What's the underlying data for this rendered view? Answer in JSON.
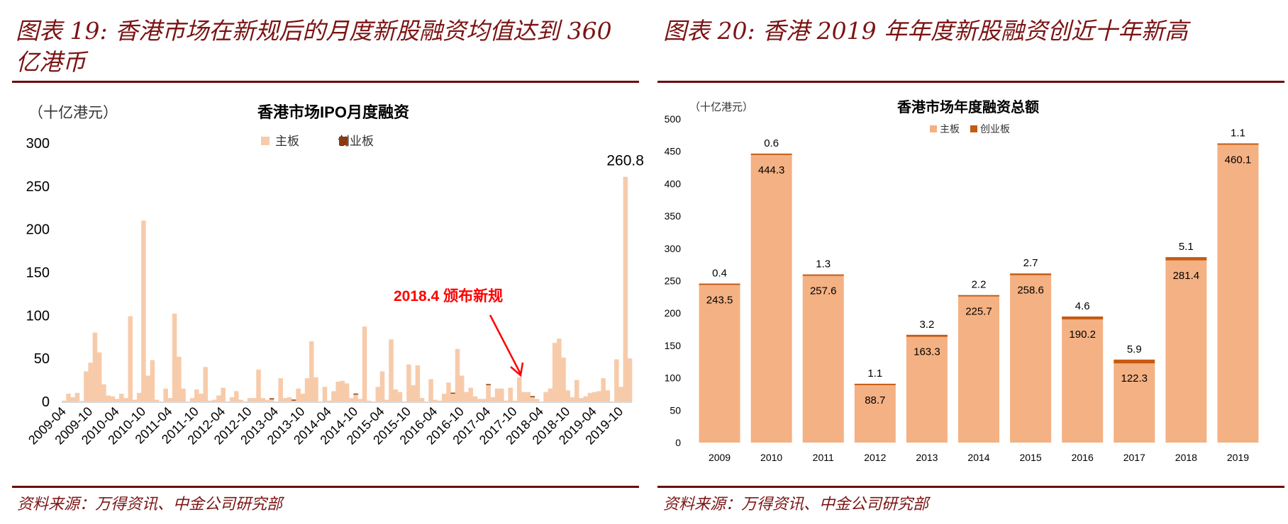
{
  "left_panel": {
    "title_line1": "图表 19:  香港市场在新规后的月度新股融资均值达到 360",
    "title_line2": "亿港币",
    "source": "资料来源：万得资讯、中金公司研究部",
    "annotation": "2018.4  颁布新规"
  },
  "right_panel": {
    "title": "图表 20:  香港 2019 年年度新股融资创近十年新高",
    "source": "资料来源：万得资讯、中金公司研究部"
  },
  "colors": {
    "title": "#7B1414",
    "left_main": "#F7CBAA",
    "left_gem": "#8B3A0F",
    "right_main": "#F4B183",
    "right_gem": "#C55A11",
    "annotation": "#FF0000"
  },
  "chart_data": [
    {
      "type": "bar",
      "stacked": true,
      "title": "香港市场IPO月度融资",
      "unit": "（十亿港元）",
      "ylim": [
        0,
        300
      ],
      "yticks": [
        "0",
        "50",
        "100",
        "150",
        "200",
        "250",
        "300"
      ],
      "x_start": "2009-04",
      "x_end": "2019-12",
      "xtick_labels": [
        "2009-04",
        "2009-10",
        "2010-04",
        "2010-10",
        "2011-04",
        "2011-10",
        "2012-04",
        "2012-10",
        "2013-04",
        "2013-10",
        "2014-04",
        "2014-10",
        "2015-04",
        "2015-10",
        "2016-04",
        "2016-10",
        "2017-04",
        "2017-10",
        "2018-04",
        "2018-10",
        "2019-04",
        "2019-10"
      ],
      "legend": [
        "主板",
        "创业板"
      ],
      "legend_position": "top",
      "max_label": "260.8",
      "series": [
        {
          "name": "主板",
          "values": [
            1,
            9,
            5,
            10,
            0.5,
            35,
            45,
            80,
            57,
            20,
            7,
            6,
            3,
            9,
            4,
            99,
            2,
            10,
            210,
            30,
            48,
            2,
            0,
            15,
            4,
            102,
            52,
            15,
            0,
            4,
            14,
            9,
            40,
            1,
            2,
            7,
            16,
            0,
            5,
            12,
            2,
            0,
            4,
            4,
            37,
            4,
            2,
            2.5,
            0,
            27,
            4,
            5,
            1,
            15,
            9,
            27,
            70,
            28,
            0,
            17,
            1,
            12,
            23,
            24,
            21,
            4,
            8,
            3,
            87,
            1,
            0,
            17,
            35,
            2,
            72,
            14,
            11,
            0,
            43,
            19,
            42,
            4,
            0,
            26,
            2,
            1,
            9,
            22,
            9,
            61,
            30,
            11,
            16,
            6,
            3,
            3,
            19,
            5,
            15,
            15,
            1,
            16,
            1,
            28,
            11,
            11,
            5,
            3,
            0,
            11,
            15,
            68,
            73,
            51,
            13,
            5,
            25,
            4,
            6,
            10,
            11,
            12,
            27,
            13,
            0,
            49,
            17,
            260.8,
            50
          ]
        },
        {
          "name": "创业板",
          "values": [
            0,
            0,
            0,
            0,
            0,
            0,
            0,
            0,
            0,
            0,
            0,
            0,
            0,
            0,
            0,
            0,
            0,
            0,
            0,
            0,
            0,
            0,
            0,
            0,
            0,
            0,
            0,
            0,
            0,
            0,
            0,
            0,
            0,
            0,
            0,
            0,
            0,
            0,
            0,
            0,
            0,
            0,
            0,
            0,
            0,
            0,
            0,
            0.5,
            0,
            0,
            0,
            0,
            0.8,
            0,
            0,
            0,
            0,
            0,
            0,
            0,
            0,
            0,
            0,
            0,
            0,
            0,
            1,
            0,
            0,
            0,
            0,
            0,
            0,
            0,
            0,
            0,
            0,
            0,
            0,
            0,
            0,
            0,
            0,
            0,
            0,
            0,
            0,
            0,
            1,
            0,
            0,
            0,
            0,
            0,
            0,
            0,
            1,
            0,
            0,
            0,
            0,
            0,
            0,
            0,
            0,
            0,
            0.5,
            0,
            0,
            0,
            0,
            0,
            0,
            0,
            0,
            0,
            0,
            0,
            0,
            0,
            0,
            0,
            0,
            0,
            0,
            0,
            0
          ]
        }
      ]
    },
    {
      "type": "bar",
      "stacked": true,
      "title": "香港市场年度融资总额",
      "unit": "（十亿港元）",
      "ylim": [
        0,
        500
      ],
      "yticks": [
        "0",
        "50",
        "100",
        "150",
        "200",
        "250",
        "300",
        "350",
        "400",
        "450",
        "500"
      ],
      "categories": [
        "2009",
        "2010",
        "2011",
        "2012",
        "2013",
        "2014",
        "2015",
        "2016",
        "2017",
        "2018",
        "2019"
      ],
      "legend": [
        "主板",
        "创业板"
      ],
      "legend_position": "top",
      "series": [
        {
          "name": "主板",
          "values": [
            243.5,
            444.3,
            257.6,
            88.7,
            163.3,
            225.7,
            258.6,
            190.2,
            122.3,
            281.4,
            460.1
          ],
          "labels": [
            "243.5",
            "444.3",
            "257.6",
            "88.7",
            "163.3",
            "225.7",
            "258.6",
            "190.2",
            "122.3",
            "281.4",
            "460.1"
          ]
        },
        {
          "name": "创业板",
          "values": [
            0.4,
            0.6,
            1.3,
            1.1,
            3.2,
            2.2,
            2.7,
            4.6,
            5.9,
            5.1,
            1.1
          ],
          "labels": [
            "0.4",
            "0.6",
            "1.3",
            "1.1",
            "3.2",
            "2.2",
            "2.7",
            "4.6",
            "5.9",
            "5.1",
            "1.1"
          ]
        }
      ]
    }
  ]
}
